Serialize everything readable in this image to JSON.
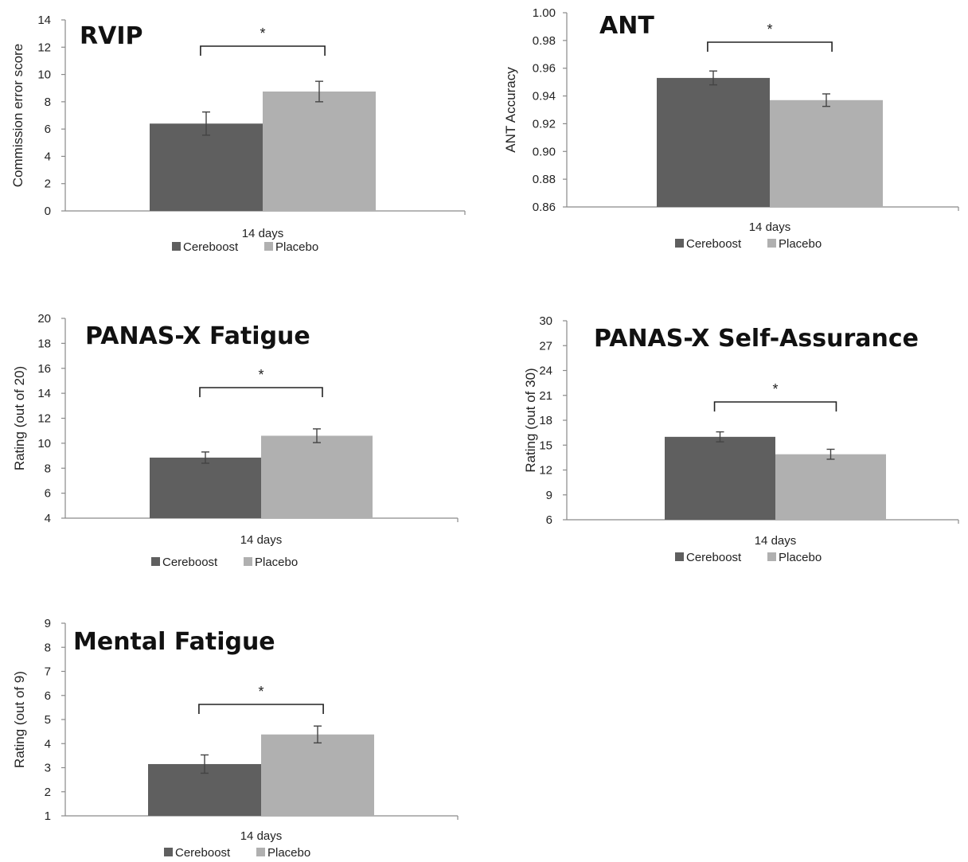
{
  "chart_data": [
    {
      "type": "bar",
      "title": "RVIP",
      "ylabel": "Commission error score",
      "categories": [
        "14 days"
      ],
      "ylim": [
        0,
        14
      ],
      "yticks": [
        "0",
        "2",
        "4",
        "6",
        "8",
        "10",
        "12",
        "14"
      ],
      "series": [
        {
          "name": "Cereboost",
          "values": [
            6.4
          ],
          "error": [
            0.85
          ],
          "color": "#5f5f5f"
        },
        {
          "name": "Placebo",
          "values": [
            8.75
          ],
          "error": [
            0.75
          ],
          "color": "#b0b0b0"
        }
      ],
      "significance": "*",
      "legend": "bottom"
    },
    {
      "type": "bar",
      "title": "ANT",
      "ylabel": "ANT Accuracy",
      "categories": [
        "14 days"
      ],
      "ylim": [
        0.86,
        1.0
      ],
      "yticks": [
        "0.86",
        "0.88",
        "0.90",
        "0.92",
        "0.94",
        "0.96",
        "0.98",
        "1.00"
      ],
      "series": [
        {
          "name": "Cereboost",
          "values": [
            0.953
          ],
          "error": [
            0.005
          ],
          "color": "#5f5f5f"
        },
        {
          "name": "Placebo",
          "values": [
            0.937
          ],
          "error": [
            0.0045
          ],
          "color": "#b0b0b0"
        }
      ],
      "significance": "*",
      "legend": "bottom"
    },
    {
      "type": "bar",
      "title": "PANAS-X Fatigue",
      "ylabel": "Rating (out of 20)",
      "categories": [
        "14 days"
      ],
      "ylim": [
        4,
        20
      ],
      "yticks": [
        "4",
        "6",
        "8",
        "10",
        "12",
        "14",
        "16",
        "18",
        "20"
      ],
      "series": [
        {
          "name": "Cereboost",
          "values": [
            8.85
          ],
          "error": [
            0.45
          ],
          "color": "#5f5f5f"
        },
        {
          "name": "Placebo",
          "values": [
            10.6
          ],
          "error": [
            0.55
          ],
          "color": "#b0b0b0"
        }
      ],
      "significance": "*",
      "legend": "bottom"
    },
    {
      "type": "bar",
      "title": "PANAS-X Self-Assurance",
      "ylabel": "Rating (out of 30)",
      "categories": [
        "14 days"
      ],
      "ylim": [
        6,
        30
      ],
      "yticks": [
        "6",
        "9",
        "12",
        "15",
        "18",
        "21",
        "24",
        "27",
        "30"
      ],
      "series": [
        {
          "name": "Cereboost",
          "values": [
            16.0
          ],
          "error": [
            0.6
          ],
          "color": "#5f5f5f"
        },
        {
          "name": "Placebo",
          "values": [
            13.9
          ],
          "error": [
            0.6
          ],
          "color": "#b0b0b0"
        }
      ],
      "significance": "*",
      "legend": "bottom"
    },
    {
      "type": "bar",
      "title": "Mental Fatigue",
      "ylabel": "Rating (out of 9)",
      "categories": [
        "14 days"
      ],
      "ylim": [
        1,
        9
      ],
      "yticks": [
        "1",
        "2",
        "3",
        "4",
        "5",
        "6",
        "7",
        "8",
        "9"
      ],
      "series": [
        {
          "name": "Cereboost",
          "values": [
            3.15
          ],
          "error": [
            0.38
          ],
          "color": "#5f5f5f"
        },
        {
          "name": "Placebo",
          "values": [
            4.38
          ],
          "error": [
            0.35
          ],
          "color": "#b0b0b0"
        }
      ],
      "significance": "*",
      "legend": "bottom"
    }
  ]
}
